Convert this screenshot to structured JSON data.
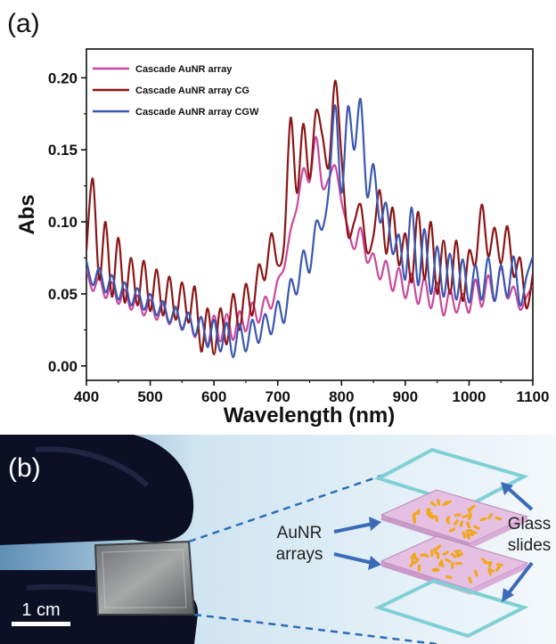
{
  "panel_a_label": "(a)",
  "panel_b_label": "(b)",
  "chart_data": {
    "type": "line",
    "title": "",
    "xlabel": "Wavelength (nm)",
    "ylabel": "Abs",
    "xlim": [
      400,
      1100
    ],
    "ylim": [
      -0.01,
      0.22
    ],
    "xticks": [
      400,
      500,
      600,
      700,
      800,
      900,
      1000,
      1100
    ],
    "yticks": [
      0.0,
      0.05,
      0.1,
      0.15,
      0.2
    ],
    "ytick_labels": [
      "0.00",
      "0.05",
      "0.10",
      "0.15",
      "0.20"
    ],
    "grid": false,
    "legend_position": "top-left",
    "series": [
      {
        "name": "Cascade AuNR array",
        "color": "#c9489c",
        "x": [
          400,
          410,
          420,
          430,
          440,
          450,
          460,
          470,
          480,
          490,
          500,
          510,
          520,
          530,
          540,
          550,
          560,
          570,
          580,
          590,
          600,
          610,
          620,
          630,
          640,
          650,
          660,
          670,
          680,
          690,
          700,
          710,
          720,
          730,
          740,
          750,
          760,
          770,
          780,
          790,
          800,
          810,
          820,
          830,
          840,
          850,
          860,
          870,
          880,
          890,
          900,
          910,
          920,
          930,
          940,
          950,
          960,
          970,
          980,
          990,
          1000,
          1010,
          1020,
          1030,
          1040,
          1050,
          1060,
          1070,
          1080,
          1090,
          1100
        ],
        "y": [
          0.068,
          0.052,
          0.062,
          0.047,
          0.058,
          0.043,
          0.053,
          0.039,
          0.049,
          0.035,
          0.046,
          0.032,
          0.043,
          0.029,
          0.04,
          0.026,
          0.037,
          0.02,
          0.034,
          0.015,
          0.035,
          0.017,
          0.036,
          0.018,
          0.038,
          0.024,
          0.044,
          0.03,
          0.048,
          0.04,
          0.06,
          0.068,
          0.094,
          0.11,
          0.137,
          0.128,
          0.159,
          0.124,
          0.13,
          0.139,
          0.114,
          0.096,
          0.081,
          0.096,
          0.072,
          0.078,
          0.06,
          0.073,
          0.052,
          0.068,
          0.047,
          0.064,
          0.043,
          0.061,
          0.04,
          0.058,
          0.035,
          0.053,
          0.037,
          0.05,
          0.037,
          0.06,
          0.041,
          0.063,
          0.045,
          0.068,
          0.047,
          0.055,
          0.039,
          0.048,
          0.056
        ]
      },
      {
        "name": "Cascade AuNR array CG",
        "color": "#8c1515",
        "x": [
          400,
          410,
          420,
          430,
          440,
          450,
          460,
          470,
          480,
          490,
          500,
          510,
          520,
          530,
          540,
          550,
          560,
          570,
          580,
          590,
          600,
          610,
          620,
          630,
          640,
          650,
          660,
          670,
          680,
          690,
          700,
          710,
          720,
          730,
          740,
          750,
          760,
          770,
          780,
          790,
          800,
          810,
          820,
          830,
          840,
          850,
          860,
          870,
          880,
          890,
          900,
          910,
          920,
          930,
          940,
          950,
          960,
          970,
          980,
          990,
          1000,
          1010,
          1020,
          1030,
          1040,
          1050,
          1060,
          1070,
          1080,
          1090,
          1100
        ],
        "y": [
          0.08,
          0.13,
          0.06,
          0.1,
          0.048,
          0.089,
          0.044,
          0.075,
          0.042,
          0.073,
          0.038,
          0.067,
          0.035,
          0.062,
          0.032,
          0.058,
          0.03,
          0.055,
          0.01,
          0.04,
          0.008,
          0.04,
          0.015,
          0.05,
          0.025,
          0.057,
          0.035,
          0.07,
          0.06,
          0.092,
          0.07,
          0.085,
          0.172,
          0.12,
          0.168,
          0.13,
          0.177,
          0.16,
          0.138,
          0.198,
          0.145,
          0.091,
          0.1,
          0.112,
          0.079,
          0.09,
          0.122,
          0.078,
          0.11,
          0.07,
          0.092,
          0.058,
          0.107,
          0.06,
          0.1,
          0.05,
          0.087,
          0.05,
          0.087,
          0.045,
          0.08,
          0.07,
          0.112,
          0.076,
          0.096,
          0.071,
          0.097,
          0.062,
          0.075,
          0.04,
          0.064
        ]
      },
      {
        "name": "Cascade AuNR array CGW",
        "color": "#3a58b0",
        "x": [
          400,
          410,
          420,
          430,
          440,
          450,
          460,
          470,
          480,
          490,
          500,
          510,
          520,
          530,
          540,
          550,
          560,
          570,
          580,
          590,
          600,
          610,
          620,
          630,
          640,
          650,
          660,
          670,
          680,
          690,
          700,
          710,
          720,
          730,
          740,
          750,
          760,
          770,
          780,
          790,
          800,
          810,
          820,
          830,
          840,
          850,
          860,
          870,
          880,
          890,
          900,
          910,
          920,
          930,
          940,
          950,
          960,
          970,
          980,
          990,
          1000,
          1010,
          1020,
          1030,
          1040,
          1050,
          1060,
          1070,
          1080,
          1090,
          1100
        ],
        "y": [
          0.073,
          0.056,
          0.068,
          0.051,
          0.063,
          0.046,
          0.058,
          0.042,
          0.054,
          0.039,
          0.05,
          0.035,
          0.045,
          0.03,
          0.041,
          0.025,
          0.037,
          0.021,
          0.034,
          0.013,
          0.032,
          0.01,
          0.03,
          0.006,
          0.029,
          0.01,
          0.032,
          0.016,
          0.036,
          0.022,
          0.045,
          0.03,
          0.06,
          0.05,
          0.08,
          0.065,
          0.1,
          0.095,
          0.122,
          0.181,
          0.12,
          0.18,
          0.15,
          0.185,
          0.118,
          0.14,
          0.1,
          0.113,
          0.078,
          0.091,
          0.06,
          0.11,
          0.056,
          0.095,
          0.05,
          0.083,
          0.048,
          0.078,
          0.046,
          0.074,
          0.044,
          0.07,
          0.046,
          0.075,
          0.045,
          0.07,
          0.048,
          0.076,
          0.042,
          0.062,
          0.076
        ]
      }
    ]
  },
  "photo": {
    "scale_label": "1 cm",
    "aunr_label_line1": "AuNR",
    "aunr_label_line2": "arrays",
    "glass_label_line1": "Glass",
    "glass_label_line2": "slides",
    "colors": {
      "background_light": "#eef5fa",
      "background_blue": "#bcdcee",
      "glove": "#0d1024",
      "glass_edge": "#7fd0d6",
      "array_layer": "#e6c0e2",
      "nanorod": "#f0a820",
      "arrow": "#3a6ab8"
    }
  }
}
